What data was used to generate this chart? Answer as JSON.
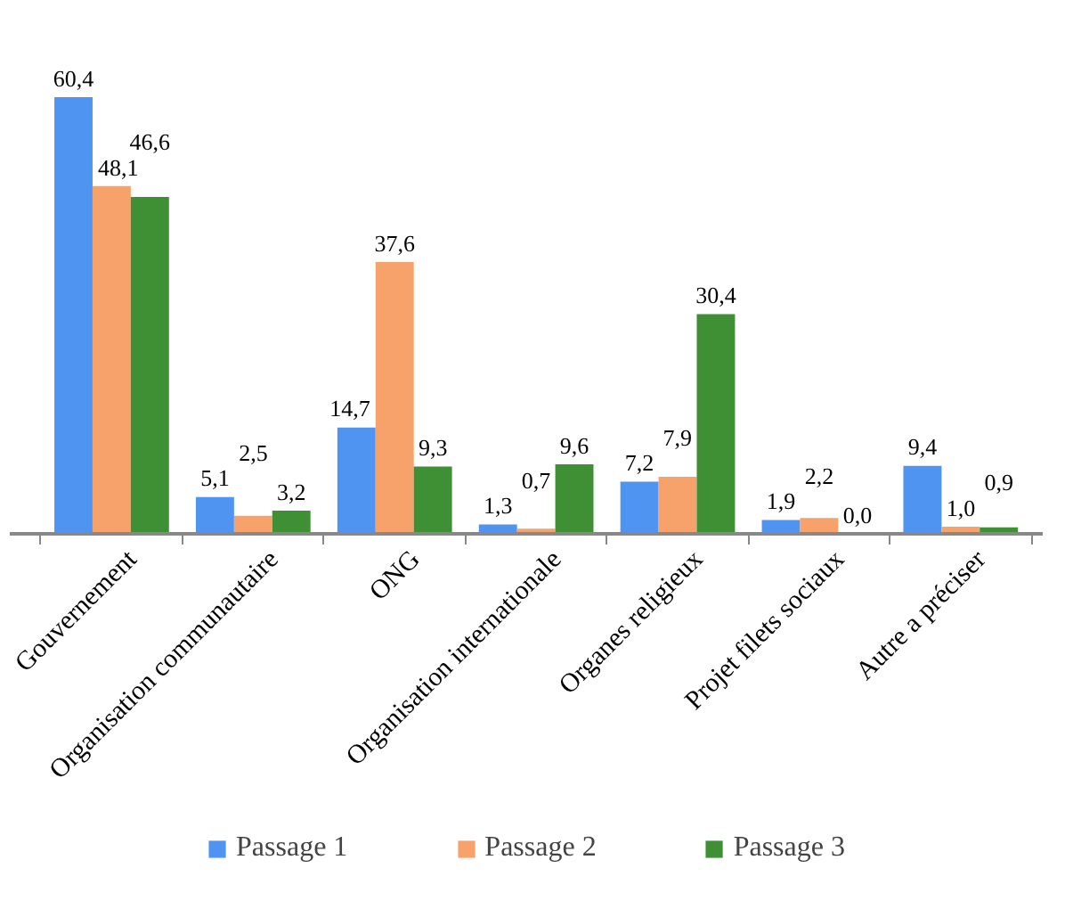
{
  "chart_data": {
    "type": "bar",
    "categories": [
      "Gouvernement",
      "Organisation communautaire",
      "ONG",
      "Organisation internationale",
      "Organes religieux",
      "Projet filets sociaux",
      "Autre a préciser"
    ],
    "series": [
      {
        "name": "Passage 1",
        "color": "#4f94f0",
        "values": [
          60.4,
          5.1,
          14.7,
          1.3,
          7.2,
          1.9,
          9.4
        ],
        "value_labels": [
          "60,4",
          "5,1",
          "14,7",
          "1,3",
          "7,2",
          "1,9",
          "9,4"
        ]
      },
      {
        "name": "Passage 2",
        "color": "#f7a26a",
        "values": [
          48.1,
          2.5,
          37.6,
          0.7,
          7.9,
          2.2,
          1.0
        ],
        "value_labels": [
          "48,1",
          "2,5",
          "37,6",
          "0,7",
          "7,9",
          "2,2",
          "1,0"
        ]
      },
      {
        "name": "Passage 3",
        "color": "#3f8f35",
        "values": [
          46.6,
          3.2,
          9.3,
          9.6,
          30.4,
          0.0,
          0.9
        ],
        "value_labels": [
          "46,6",
          "3,2",
          "9,3",
          "9,6",
          "30,4",
          "0,0",
          "0,9"
        ]
      }
    ],
    "legend": "bottom"
  }
}
